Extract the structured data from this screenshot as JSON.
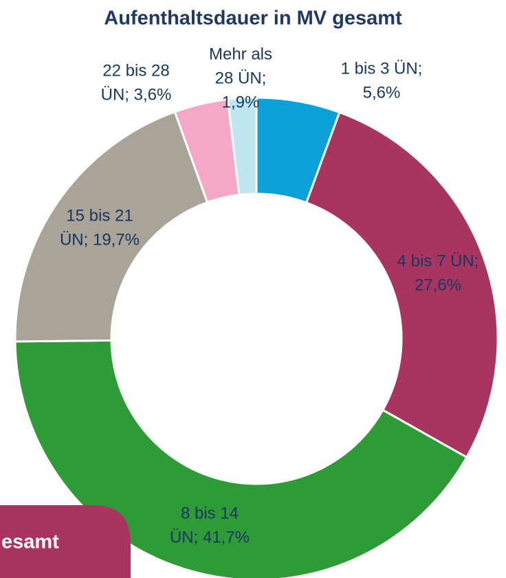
{
  "chart_data": {
    "type": "donut",
    "title": "Aufenthaltsdauer in MV gesamt",
    "values": [
      5.6,
      27.6,
      41.7,
      19.7,
      3.6,
      1.9
    ],
    "value_labels": [
      [
        "1 bis 3 ÜN;",
        "5,6%"
      ],
      [
        "4 bis 7 ÜN;",
        "27,6%"
      ],
      [
        "8 bis 14",
        "ÜN; 41,7%"
      ],
      [
        "15 bis 21",
        "ÜN; 19,7%"
      ],
      [
        "22 bis 28",
        "ÜN; 3,6%"
      ],
      [
        "Mehr als",
        "28 ÜN;",
        "1,9%"
      ]
    ],
    "colors": [
      "#0ba0d8",
      "#a73560",
      "#2e9b37",
      "#a9a398",
      "#f4a8c6",
      "#bfe6f0"
    ],
    "annotation": "esamt"
  }
}
